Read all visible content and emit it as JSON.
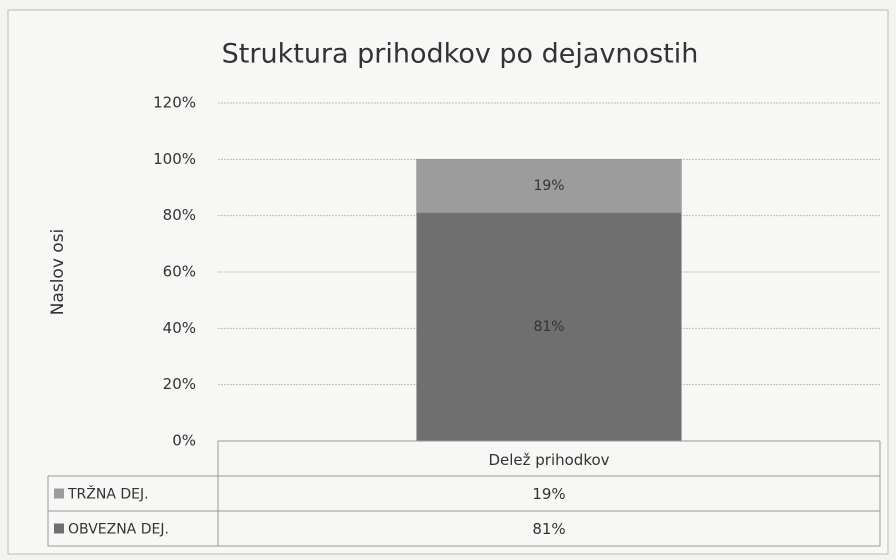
{
  "chart_data": {
    "type": "stacked_bar",
    "title": "Struktura prihodkov po dejavnostih",
    "y_label": "Naslov osi",
    "categories": [
      "Delež prihodkov"
    ],
    "series": [
      {
        "name": "OBVEZNA DEJ.",
        "color": "#6f6f6f",
        "values": [
          81
        ],
        "value_labels": [
          "81%"
        ]
      },
      {
        "name": "TRŽNA DEJ.",
        "color": "#9c9c9c",
        "values": [
          19
        ],
        "value_labels": [
          "19%"
        ]
      }
    ],
    "ylim": [
      0,
      120
    ],
    "yticks": [
      {
        "value": 0,
        "label": "0%"
      },
      {
        "value": 20,
        "label": "20%"
      },
      {
        "value": 40,
        "label": "40%"
      },
      {
        "value": 60,
        "label": "60%"
      },
      {
        "value": 80,
        "label": "80%"
      },
      {
        "value": 100,
        "label": "100%"
      },
      {
        "value": 120,
        "label": "120%"
      }
    ],
    "grid": true,
    "data_table": true
  }
}
